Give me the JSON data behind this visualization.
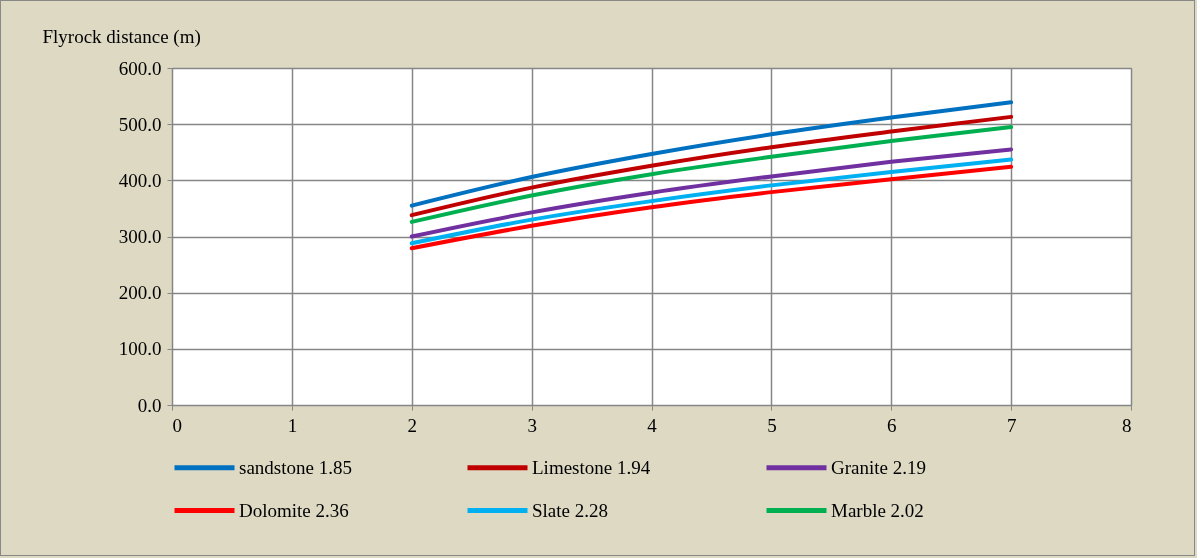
{
  "chart_data": {
    "type": "line",
    "ylabel": "Flyrock distance (m)",
    "x": [
      2,
      3,
      4,
      5,
      6,
      7
    ],
    "xlim": [
      0,
      8
    ],
    "xticks": [
      0,
      1,
      2,
      3,
      4,
      5,
      6,
      7,
      8
    ],
    "ylim": [
      0,
      600
    ],
    "yticks": [
      {
        "value": 0,
        "label": "0.0"
      },
      {
        "value": 100,
        "label": "100.0"
      },
      {
        "value": 200,
        "label": "200.0"
      },
      {
        "value": 300,
        "label": "300.0"
      },
      {
        "value": 400,
        "label": "400.0"
      },
      {
        "value": 500,
        "label": "500.0"
      },
      {
        "value": 600,
        "label": "600.0"
      }
    ],
    "grid": true,
    "legend": "bottom",
    "marker": "none",
    "line_style": "solid",
    "series": [
      {
        "name": "sandstone 1.85",
        "color": "#0070c0",
        "values": [
          355,
          406,
          447,
          482,
          512,
          539
        ]
      },
      {
        "name": "Limestone 1.94",
        "color": "#c00000",
        "values": [
          338,
          387,
          426,
          459,
          487,
          513
        ]
      },
      {
        "name": "Granite 2.19",
        "color": "#7030a0",
        "values": [
          300,
          343,
          378,
          407,
          433,
          455
        ]
      },
      {
        "name": "Dolomite 2.36",
        "color": "#ff0000",
        "values": [
          279,
          319,
          352,
          379,
          402,
          424
        ]
      },
      {
        "name": "Slate 2.28",
        "color": "#00b0f0",
        "values": [
          288,
          330,
          363,
          391,
          415,
          437
        ]
      },
      {
        "name": "Marble 2.02",
        "color": "#00b050",
        "values": [
          326,
          373,
          411,
          442,
          470,
          495
        ]
      }
    ]
  }
}
